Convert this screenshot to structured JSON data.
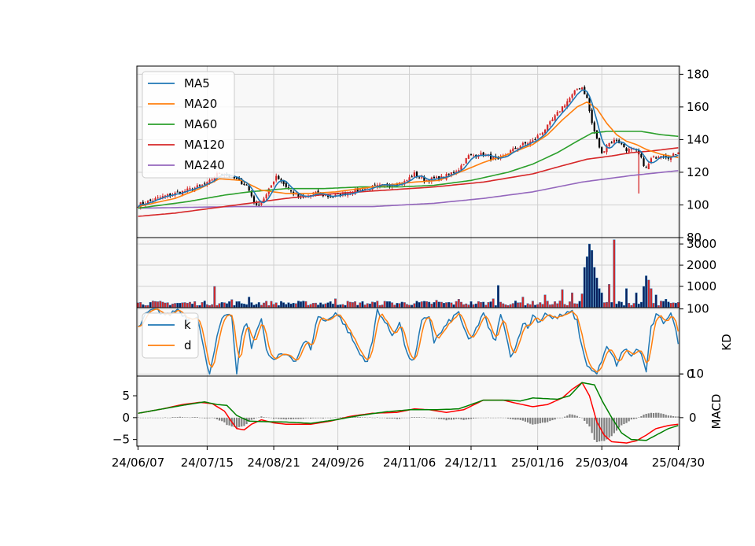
{
  "chart_data": {
    "type": "candlestick-with-indicators",
    "date_ticks": [
      "24/06/07",
      "24/07/15",
      "24/08/21",
      "24/09/26",
      "24/11/06",
      "24/12/11",
      "25/01/16",
      "25/03/04",
      "25/04/30"
    ],
    "bars_count": 220,
    "colors": {
      "up": "#d62728",
      "down": "#000000",
      "ma5": "#1f77b4",
      "ma20": "#ff7f0e",
      "ma60": "#2ca02c",
      "ma120": "#d62728",
      "ma240": "#9467bd",
      "k": "#1f77b4",
      "d": "#ff7f0e",
      "macd": "#ff0000",
      "signal": "#008000",
      "hist": "#808080",
      "panel_bg": "#f8f8f8",
      "grid": "#d0d0d0"
    },
    "price": {
      "ylim": [
        80,
        185
      ],
      "yticks": [
        80,
        100,
        120,
        140,
        160,
        180
      ],
      "legend": [
        "MA5",
        "MA20",
        "MA60",
        "MA120",
        "MA240"
      ],
      "legend_position": "upper-left",
      "anchors": [
        [
          0,
          100
        ],
        [
          10,
          105
        ],
        [
          20,
          109
        ],
        [
          28,
          113
        ],
        [
          33,
          120
        ],
        [
          38,
          117
        ],
        [
          44,
          112
        ],
        [
          48,
          99
        ],
        [
          52,
          106
        ],
        [
          56,
          118
        ],
        [
          62,
          108
        ],
        [
          66,
          104
        ],
        [
          72,
          107
        ],
        [
          78,
          105
        ],
        [
          84,
          107
        ],
        [
          92,
          110
        ],
        [
          100,
          112
        ],
        [
          108,
          114
        ],
        [
          112,
          119
        ],
        [
          116,
          115
        ],
        [
          124,
          117
        ],
        [
          130,
          122
        ],
        [
          134,
          130
        ],
        [
          140,
          131
        ],
        [
          146,
          127
        ],
        [
          150,
          132
        ],
        [
          156,
          137
        ],
        [
          160,
          139
        ],
        [
          166,
          148
        ],
        [
          172,
          160
        ],
        [
          176,
          167
        ],
        [
          178,
          171
        ],
        [
          180,
          172
        ],
        [
          182,
          165
        ],
        [
          184,
          150
        ],
        [
          186,
          140
        ],
        [
          188,
          131
        ],
        [
          190,
          137
        ],
        [
          194,
          140
        ],
        [
          198,
          134
        ],
        [
          202,
          133
        ],
        [
          204,
          128
        ],
        [
          206,
          122
        ],
        [
          208,
          128
        ],
        [
          212,
          131
        ],
        [
          216,
          129
        ],
        [
          219,
          133
        ]
      ],
      "ma20": [
        [
          0,
          99
        ],
        [
          15,
          104
        ],
        [
          25,
          110
        ],
        [
          33,
          116
        ],
        [
          42,
          115
        ],
        [
          50,
          109
        ],
        [
          60,
          107
        ],
        [
          70,
          107
        ],
        [
          80,
          108
        ],
        [
          100,
          112
        ],
        [
          112,
          114
        ],
        [
          122,
          115
        ],
        [
          132,
          121
        ],
        [
          140,
          126
        ],
        [
          150,
          131
        ],
        [
          160,
          137
        ],
        [
          166,
          143
        ],
        [
          172,
          152
        ],
        [
          178,
          160
        ],
        [
          182,
          163
        ],
        [
          186,
          159
        ],
        [
          190,
          150
        ],
        [
          194,
          143
        ],
        [
          198,
          139
        ],
        [
          202,
          137
        ],
        [
          206,
          134
        ],
        [
          212,
          131
        ],
        [
          219,
          129
        ]
      ],
      "ma60": [
        [
          0,
          98
        ],
        [
          20,
          102
        ],
        [
          35,
          106
        ],
        [
          45,
          108
        ],
        [
          60,
          110
        ],
        [
          75,
          110
        ],
        [
          90,
          111
        ],
        [
          105,
          111
        ],
        [
          120,
          112
        ],
        [
          135,
          115
        ],
        [
          150,
          120
        ],
        [
          160,
          125
        ],
        [
          170,
          132
        ],
        [
          178,
          139
        ],
        [
          184,
          144
        ],
        [
          190,
          145
        ],
        [
          198,
          145
        ],
        [
          204,
          145
        ],
        [
          212,
          143
        ],
        [
          219,
          142
        ]
      ],
      "ma120": [
        [
          0,
          93
        ],
        [
          15,
          95
        ],
        [
          30,
          98
        ],
        [
          45,
          101
        ],
        [
          60,
          104
        ],
        [
          80,
          107
        ],
        [
          100,
          109
        ],
        [
          120,
          111
        ],
        [
          140,
          114
        ],
        [
          160,
          119
        ],
        [
          172,
          124
        ],
        [
          182,
          128
        ],
        [
          192,
          130
        ],
        [
          200,
          132
        ],
        [
          208,
          133
        ],
        [
          219,
          135
        ]
      ],
      "ma240": [
        [
          0,
          98
        ],
        [
          40,
          99
        ],
        [
          95,
          99
        ],
        [
          120,
          101
        ],
        [
          140,
          104
        ],
        [
          160,
          108
        ],
        [
          180,
          114
        ],
        [
          200,
          118
        ],
        [
          219,
          121
        ]
      ]
    },
    "volume": {
      "yticks": [
        1000,
        2000,
        3000
      ],
      "ymax": 3300,
      "spikes": [
        [
          31,
          1000
        ],
        [
          38,
          380
        ],
        [
          45,
          500
        ],
        [
          80,
          420
        ],
        [
          100,
          300
        ],
        [
          121,
          350
        ],
        [
          130,
          400
        ],
        [
          144,
          420
        ],
        [
          146,
          1050
        ],
        [
          156,
          500
        ],
        [
          165,
          600
        ],
        [
          172,
          850
        ],
        [
          176,
          700
        ],
        [
          180,
          650
        ],
        [
          181,
          1900
        ],
        [
          182,
          2400
        ],
        [
          183,
          3000
        ],
        [
          184,
          2700
        ],
        [
          185,
          1900
        ],
        [
          186,
          1400
        ],
        [
          187,
          900
        ],
        [
          188,
          700
        ],
        [
          191,
          1100
        ],
        [
          193,
          3200
        ],
        [
          198,
          900
        ],
        [
          202,
          700
        ],
        [
          205,
          1000
        ],
        [
          206,
          1500
        ],
        [
          207,
          1300
        ],
        [
          208,
          900
        ],
        [
          210,
          600
        ],
        [
          214,
          400
        ]
      ],
      "base": 200
    },
    "kd": {
      "ylabel": "KD",
      "yticks": [
        0,
        100
      ],
      "ylim": [
        -3,
        102
      ],
      "legend": [
        "k",
        "d"
      ],
      "legend_position": "upper-left",
      "k_anchors": [
        [
          0,
          70
        ],
        [
          3,
          90
        ],
        [
          6,
          100
        ],
        [
          9,
          95
        ],
        [
          12,
          90
        ],
        [
          16,
          100
        ],
        [
          20,
          85
        ],
        [
          24,
          90
        ],
        [
          27,
          30
        ],
        [
          29,
          0
        ],
        [
          31,
          40
        ],
        [
          34,
          85
        ],
        [
          38,
          90
        ],
        [
          39,
          40
        ],
        [
          40,
          0
        ],
        [
          42,
          60
        ],
        [
          44,
          80
        ],
        [
          46,
          40
        ],
        [
          48,
          70
        ],
        [
          50,
          85
        ],
        [
          52,
          35
        ],
        [
          55,
          20
        ],
        [
          58,
          30
        ],
        [
          61,
          30
        ],
        [
          64,
          20
        ],
        [
          66,
          40
        ],
        [
          68,
          50
        ],
        [
          70,
          40
        ],
        [
          73,
          90
        ],
        [
          76,
          80
        ],
        [
          80,
          95
        ],
        [
          83,
          80
        ],
        [
          86,
          60
        ],
        [
          90,
          30
        ],
        [
          93,
          20
        ],
        [
          95,
          50
        ],
        [
          97,
          100
        ],
        [
          100,
          80
        ],
        [
          103,
          60
        ],
        [
          106,
          80
        ],
        [
          109,
          30
        ],
        [
          112,
          20
        ],
        [
          115,
          80
        ],
        [
          118,
          90
        ],
        [
          120,
          50
        ],
        [
          122,
          60
        ],
        [
          126,
          80
        ],
        [
          130,
          95
        ],
        [
          134,
          50
        ],
        [
          136,
          60
        ],
        [
          140,
          95
        ],
        [
          142,
          70
        ],
        [
          145,
          50
        ],
        [
          147,
          95
        ],
        [
          149,
          60
        ],
        [
          151,
          30
        ],
        [
          153,
          40
        ],
        [
          156,
          80
        ],
        [
          158,
          70
        ],
        [
          160,
          90
        ],
        [
          163,
          80
        ],
        [
          165,
          95
        ],
        [
          168,
          85
        ],
        [
          172,
          90
        ],
        [
          176,
          95
        ],
        [
          178,
          80
        ],
        [
          180,
          40
        ],
        [
          182,
          15
        ],
        [
          184,
          5
        ],
        [
          186,
          0
        ],
        [
          188,
          20
        ],
        [
          190,
          40
        ],
        [
          192,
          30
        ],
        [
          194,
          15
        ],
        [
          196,
          30
        ],
        [
          198,
          40
        ],
        [
          200,
          25
        ],
        [
          202,
          40
        ],
        [
          204,
          30
        ],
        [
          206,
          5
        ],
        [
          208,
          70
        ],
        [
          210,
          90
        ],
        [
          213,
          80
        ],
        [
          216,
          95
        ],
        [
          219,
          50
        ]
      ]
    },
    "macd": {
      "ylabel": "MACD",
      "left_yticks": [
        -5,
        0,
        5
      ],
      "right_yticks": [
        0,
        10
      ],
      "ylim": [
        -6.5,
        9.5
      ],
      "hist_scale": 0.35,
      "macd_anchors": [
        [
          0,
          1
        ],
        [
          10,
          2
        ],
        [
          18,
          3
        ],
        [
          25,
          3.5
        ],
        [
          30,
          3.2
        ],
        [
          35,
          1.5
        ],
        [
          38,
          -1
        ],
        [
          40,
          -2.5
        ],
        [
          43,
          -2.8
        ],
        [
          46,
          -1.5
        ],
        [
          50,
          -0.5
        ],
        [
          55,
          -1.2
        ],
        [
          60,
          -1.5
        ],
        [
          70,
          -1.5
        ],
        [
          78,
          -0.8
        ],
        [
          86,
          0.3
        ],
        [
          95,
          1
        ],
        [
          105,
          1.2
        ],
        [
          112,
          2
        ],
        [
          118,
          1.8
        ],
        [
          125,
          1.2
        ],
        [
          132,
          1.8
        ],
        [
          140,
          4
        ],
        [
          148,
          4
        ],
        [
          154,
          3.2
        ],
        [
          160,
          2.5
        ],
        [
          166,
          3
        ],
        [
          172,
          4.5
        ],
        [
          176,
          6.5
        ],
        [
          180,
          8
        ],
        [
          183,
          5
        ],
        [
          186,
          -1
        ],
        [
          189,
          -4
        ],
        [
          192,
          -5.5
        ],
        [
          198,
          -5.8
        ],
        [
          202,
          -5.3
        ],
        [
          206,
          -4
        ],
        [
          210,
          -2.5
        ],
        [
          215,
          -1.8
        ],
        [
          219,
          -1.5
        ]
      ],
      "signal_anchors": [
        [
          0,
          1
        ],
        [
          10,
          2
        ],
        [
          20,
          3
        ],
        [
          27,
          3.6
        ],
        [
          32,
          3
        ],
        [
          36,
          2.8
        ],
        [
          40,
          0.5
        ],
        [
          45,
          -0.8
        ],
        [
          50,
          -0.9
        ],
        [
          60,
          -1
        ],
        [
          70,
          -1.3
        ],
        [
          80,
          -0.5
        ],
        [
          90,
          0.5
        ],
        [
          100,
          1.3
        ],
        [
          110,
          1.8
        ],
        [
          120,
          1.8
        ],
        [
          130,
          2
        ],
        [
          140,
          4
        ],
        [
          150,
          4
        ],
        [
          155,
          3.8
        ],
        [
          160,
          4.5
        ],
        [
          170,
          4.2
        ],
        [
          175,
          5
        ],
        [
          180,
          8
        ],
        [
          185,
          7.5
        ],
        [
          188,
          4
        ],
        [
          192,
          0
        ],
        [
          196,
          -3.5
        ],
        [
          200,
          -5
        ],
        [
          206,
          -5.2
        ],
        [
          210,
          -4
        ],
        [
          215,
          -2.5
        ],
        [
          219,
          -1.8
        ]
      ]
    }
  }
}
